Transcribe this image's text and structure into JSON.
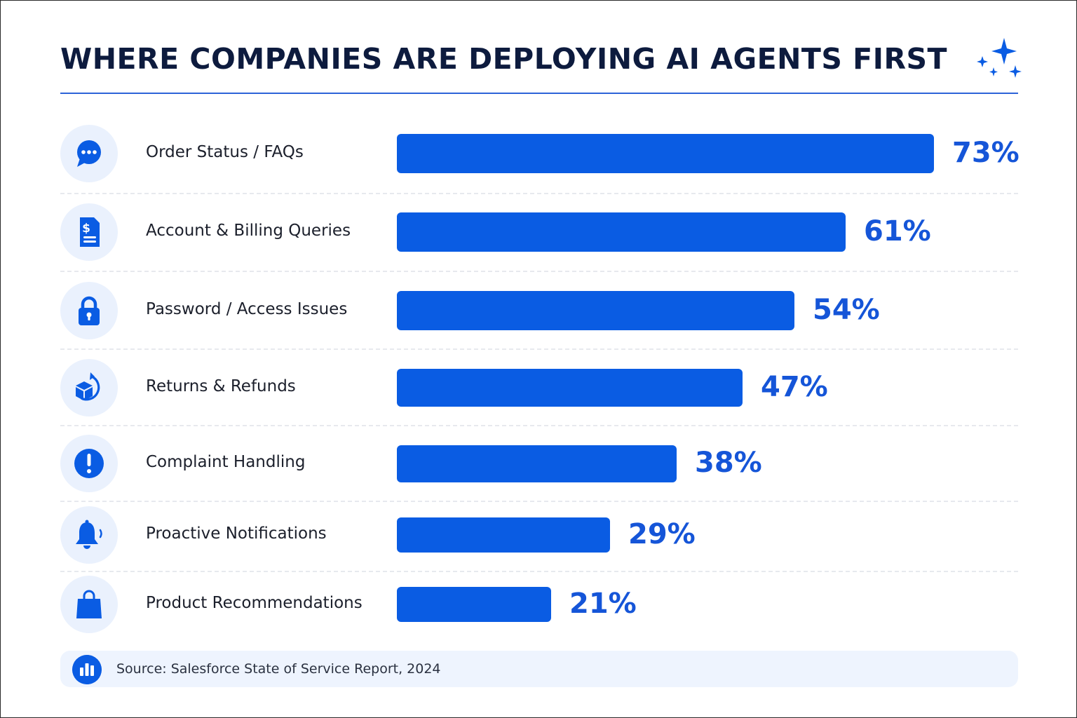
{
  "title": "WHERE COMPANIES ARE DEPLOYING AI AGENTS FIRST",
  "colors": {
    "accent": "#0a5ce3",
    "value_text": "#1555d8",
    "title_text": "#0d1b3e",
    "icon_bg": "#eaf1fd",
    "source_bg": "#eef4fe"
  },
  "chart_data": {
    "type": "bar",
    "orientation": "horizontal",
    "title": "WHERE COMPANIES ARE DEPLOYING AI AGENTS FIRST",
    "xlim": [
      0,
      73
    ],
    "grid": false,
    "legend": "none",
    "categories": [
      "Order Status / FAQs",
      "Account & Billing Queries",
      "Password / Access Issues",
      "Returns & Refunds",
      "Complaint Handling",
      "Proactive Notifications",
      "Product Recommendations"
    ],
    "values": [
      73,
      61,
      54,
      47,
      38,
      29,
      21
    ],
    "value_labels": [
      "73%",
      "61%",
      "54%",
      "47%",
      "38%",
      "29%",
      "21%"
    ],
    "icons": [
      "chat-bubble-icon",
      "invoice-dollar-icon",
      "padlock-icon",
      "return-package-icon",
      "alert-exclamation-icon",
      "notification-bell-icon",
      "shopping-bag-icon"
    ]
  },
  "source": {
    "text": "Source: Salesforce State of Service Report, 2024",
    "icon": "bar-chart-icon"
  },
  "decoration": {
    "icon": "sparkles-icon"
  }
}
